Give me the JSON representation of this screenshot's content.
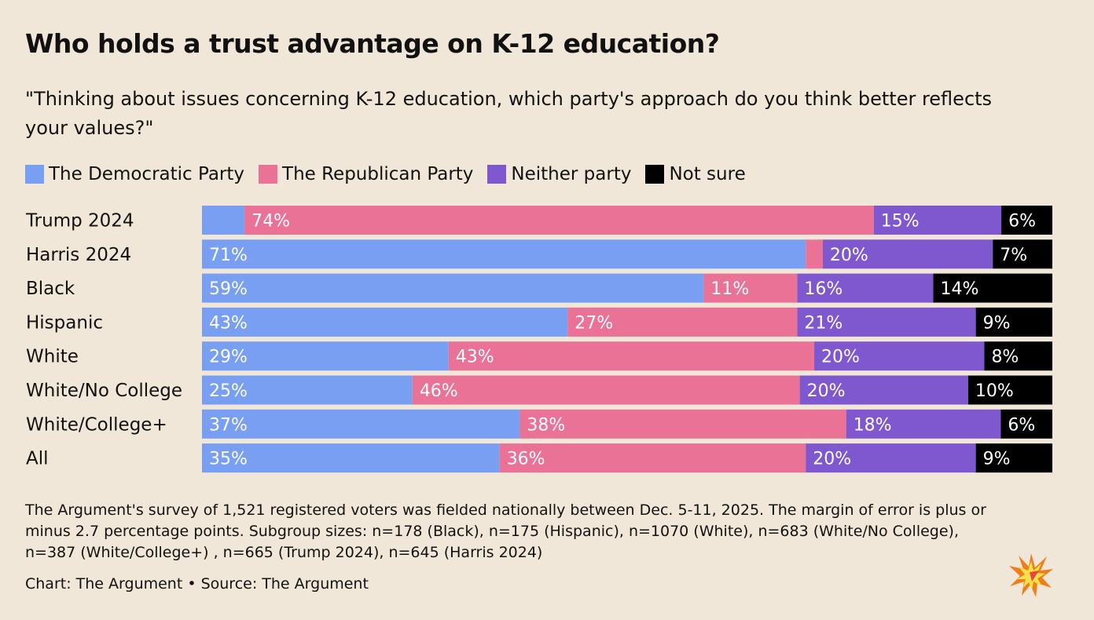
{
  "title": "Who holds a trust advantage on K-12 education?",
  "subtitle": "\"Thinking about issues concerning K-12 education, which party's approach do you think better reflects your values?\"",
  "footnote": "The Argument's survey of 1,521 registered voters was fielded nationally between Dec. 5-11, 2025. The margin of error is plus or minus 2.7 percentage points. Subgroup sizes: n=178 (Black), n=175 (Hispanic), n=1070 (White), n=683 (White/No College), n=387 (White/College+) , n=665 (Trump 2024), n=645 (Harris 2024)",
  "credit": "Chart: The Argument • Source: The Argument",
  "logo_icon": "starburst-logo-icon",
  "colors": {
    "background": "#f1e7d8",
    "democratic": "#789ff2",
    "republican": "#ea7297",
    "neither": "#7f58d0",
    "not_sure": "#000000"
  },
  "chart_data": {
    "type": "bar",
    "orientation": "horizontal",
    "stacked": true,
    "title": "Who holds a trust advantage on K-12 education?",
    "xlim": [
      0,
      100
    ],
    "legend_position": "top-left",
    "categories": [
      "Trump 2024",
      "Harris 2024",
      "Black",
      "Hispanic",
      "White",
      "White/No College",
      "White/College+",
      "All"
    ],
    "series": [
      {
        "key": "democratic",
        "name": "The Democratic Party",
        "values": [
          5,
          71,
          59,
          43,
          29,
          25,
          37,
          35
        ],
        "labels": [
          "",
          "71%",
          "59%",
          "43%",
          "29%",
          "25%",
          "37%",
          "35%"
        ]
      },
      {
        "key": "republican",
        "name": "The Republican Party",
        "values": [
          74,
          2,
          11,
          27,
          43,
          46,
          38,
          36
        ],
        "labels": [
          "74%",
          "",
          "11%",
          "27%",
          "43%",
          "46%",
          "38%",
          "36%"
        ]
      },
      {
        "key": "neither",
        "name": "Neither party",
        "values": [
          15,
          20,
          16,
          21,
          20,
          20,
          18,
          20
        ],
        "labels": [
          "15%",
          "20%",
          "16%",
          "21%",
          "20%",
          "20%",
          "18%",
          "20%"
        ]
      },
      {
        "key": "not_sure",
        "name": "Not sure",
        "values": [
          6,
          7,
          14,
          9,
          8,
          10,
          6,
          9
        ],
        "labels": [
          "6%",
          "7%",
          "14%",
          "9%",
          "8%",
          "10%",
          "6%",
          "9%"
        ]
      }
    ]
  }
}
